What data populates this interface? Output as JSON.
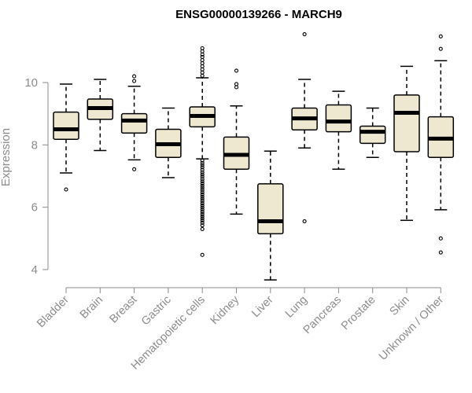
{
  "chart_data": {
    "type": "boxplot",
    "title": "ENSG00000139266 - MARCH9",
    "xlabel": "",
    "ylabel": "Expression",
    "ylim": [
      3.6,
      11.8
    ],
    "yticks": [
      4,
      6,
      8,
      10
    ],
    "grid": false,
    "legend": "none",
    "box_color": "#efe8d1",
    "categories": [
      "Bladder",
      "Brain",
      "Breast",
      "Gastric",
      "Hematopoietic cells",
      "Kidney",
      "Liver",
      "Lung",
      "Pancreas",
      "Prostate",
      "Skin",
      "Unknown / Other"
    ],
    "boxes": [
      {
        "name": "Bladder",
        "whisker_low": 7.1,
        "q1": 8.18,
        "median": 8.5,
        "q3": 9.05,
        "whisker_high": 9.95,
        "outliers": [
          6.57
        ]
      },
      {
        "name": "Brain",
        "whisker_low": 7.82,
        "q1": 8.82,
        "median": 9.18,
        "q3": 9.47,
        "whisker_high": 10.1,
        "outliers": []
      },
      {
        "name": "Breast",
        "whisker_low": 7.52,
        "q1": 8.38,
        "median": 8.78,
        "q3": 9.0,
        "whisker_high": 9.88,
        "outliers": [
          10.05,
          10.2,
          7.22
        ]
      },
      {
        "name": "Gastric",
        "whisker_low": 6.95,
        "q1": 7.6,
        "median": 8.02,
        "q3": 8.5,
        "whisker_high": 9.18,
        "outliers": []
      },
      {
        "name": "Hematopoietic cells",
        "whisker_low": 7.55,
        "q1": 8.58,
        "median": 8.93,
        "q3": 9.22,
        "whisker_high": 10.15,
        "outliers": [
          10.22,
          10.32,
          10.42,
          10.52,
          10.62,
          10.72,
          10.82,
          10.9,
          11.0,
          11.1,
          7.5,
          7.42,
          7.35,
          7.28,
          7.2,
          7.12,
          7.05,
          6.98,
          6.9,
          6.83,
          6.76,
          6.69,
          6.62,
          6.55,
          6.48,
          6.41,
          6.34,
          6.27,
          6.2,
          6.13,
          6.06,
          5.99,
          5.92,
          5.85,
          5.78,
          5.71,
          5.64,
          5.57,
          5.5,
          5.42,
          5.3,
          4.47
        ]
      },
      {
        "name": "Kidney",
        "whisker_low": 5.78,
        "q1": 7.22,
        "median": 7.68,
        "q3": 8.25,
        "whisker_high": 9.25,
        "outliers": [
          9.85,
          9.95,
          10.38
        ]
      },
      {
        "name": "Liver",
        "whisker_low": 3.67,
        "q1": 5.15,
        "median": 5.55,
        "q3": 6.75,
        "whisker_high": 7.8,
        "outliers": []
      },
      {
        "name": "Lung",
        "whisker_low": 7.9,
        "q1": 8.48,
        "median": 8.85,
        "q3": 9.18,
        "whisker_high": 10.1,
        "outliers": [
          11.55,
          5.55
        ]
      },
      {
        "name": "Pancreas",
        "whisker_low": 7.22,
        "q1": 8.42,
        "median": 8.75,
        "q3": 9.28,
        "whisker_high": 9.72,
        "outliers": []
      },
      {
        "name": "Prostate",
        "whisker_low": 7.6,
        "q1": 8.05,
        "median": 8.42,
        "q3": 8.6,
        "whisker_high": 9.18,
        "outliers": []
      },
      {
        "name": "Skin",
        "whisker_low": 5.58,
        "q1": 7.78,
        "median": 9.03,
        "q3": 9.6,
        "whisker_high": 10.52,
        "outliers": []
      },
      {
        "name": "Unknown / Other",
        "whisker_low": 5.92,
        "q1": 7.6,
        "median": 8.2,
        "q3": 8.9,
        "whisker_high": 10.7,
        "outliers": [
          11.48,
          11.08,
          5.0,
          4.55
        ]
      }
    ]
  }
}
